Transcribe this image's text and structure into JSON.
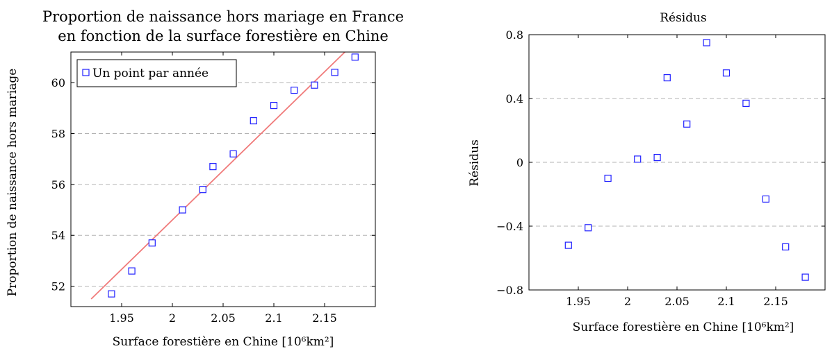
{
  "chart_data": [
    {
      "type": "scatter",
      "title_lines": [
        "Proportion de naissance hors mariage en France",
        "en fonction de la surface forestière en Chine"
      ],
      "xlabel": "Surface forestière en Chine [10⁶km²]",
      "ylabel": "Proportion de naissance hors mariage",
      "xlim": [
        1.9,
        2.2
      ],
      "ylim": [
        51.2,
        61.2
      ],
      "x_ticks": [
        1.95,
        2,
        2.05,
        2.1,
        2.15
      ],
      "x_tick_labels": [
        "1.95",
        "2",
        "2.05",
        "2.1",
        "2.15"
      ],
      "y_ticks": [
        52,
        54,
        56,
        58,
        60
      ],
      "y_tick_labels": [
        "52",
        "54",
        "56",
        "58",
        "60"
      ],
      "grid": "horizontal dashed",
      "legend": {
        "position": "top-left",
        "entries": [
          "Un point par année"
        ]
      },
      "series": [
        {
          "name": "Un point par année",
          "marker": "square",
          "color": "#2020ff",
          "x": [
            1.94,
            1.96,
            1.98,
            2.01,
            2.03,
            2.04,
            2.06,
            2.08,
            2.1,
            2.12,
            2.14,
            2.16,
            2.18
          ],
          "y": [
            51.7,
            52.6,
            53.7,
            55.0,
            55.8,
            56.7,
            57.2,
            58.5,
            59.1,
            59.7,
            59.9,
            60.4,
            61.0
          ]
        }
      ],
      "fit_line": {
        "color": "#f07a7a",
        "x": [
          1.92,
          2.17
        ],
        "y": [
          51.5,
          61.2
        ]
      }
    },
    {
      "type": "scatter",
      "title_lines": [
        "Résidus"
      ],
      "xlabel": "Surface forestière en Chine [10⁶km²]",
      "ylabel": "Résidus",
      "xlim": [
        1.9,
        2.2
      ],
      "ylim": [
        -0.8,
        0.8
      ],
      "x_ticks": [
        1.95,
        2,
        2.05,
        2.1,
        2.15
      ],
      "x_tick_labels": [
        "1.95",
        "2",
        "2.05",
        "2.1",
        "2.15"
      ],
      "y_ticks": [
        -0.8,
        -0.4,
        0,
        0.4,
        0.8
      ],
      "y_tick_labels": [
        "−0.8",
        "−0.4",
        "0",
        "0.4",
        "0.8"
      ],
      "grid": "horizontal dashed",
      "series": [
        {
          "marker": "square",
          "color": "#2020ff",
          "x": [
            1.94,
            1.96,
            1.98,
            2.01,
            2.03,
            2.04,
            2.06,
            2.08,
            2.1,
            2.12,
            2.14,
            2.16,
            2.18
          ],
          "y": [
            -0.52,
            -0.41,
            -0.1,
            0.02,
            0.03,
            0.53,
            0.24,
            0.75,
            0.56,
            0.37,
            -0.23,
            -0.53,
            -0.72
          ]
        }
      ]
    }
  ]
}
